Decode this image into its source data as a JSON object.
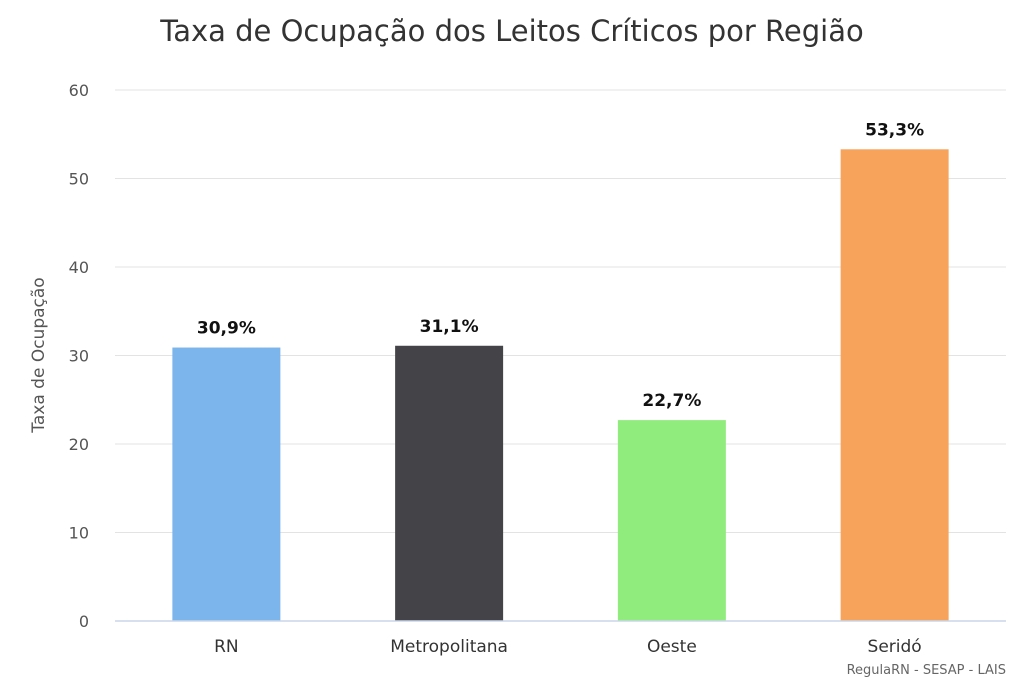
{
  "chart_data": {
    "type": "bar",
    "title": "Taxa de Ocupação dos Leitos Críticos por Região",
    "xlabel": "",
    "ylabel": "Taxa de Ocupação",
    "ylim": [
      0,
      60
    ],
    "yticks": [
      "0",
      "10",
      "20",
      "30",
      "40",
      "50",
      "60"
    ],
    "grid": true,
    "categories": [
      "RN",
      "Metropolitana",
      "Oeste",
      "Seridó"
    ],
    "values": [
      30.9,
      31.1,
      22.7,
      53.3
    ],
    "data_labels": [
      "30,9%",
      "31,1%",
      "22,7%",
      "53,3%"
    ],
    "colors": [
      "#7cb5ec",
      "#434348",
      "#90ed7d",
      "#f7a35c"
    ],
    "credits": "RegulaRN - SESAP - LAIS"
  }
}
